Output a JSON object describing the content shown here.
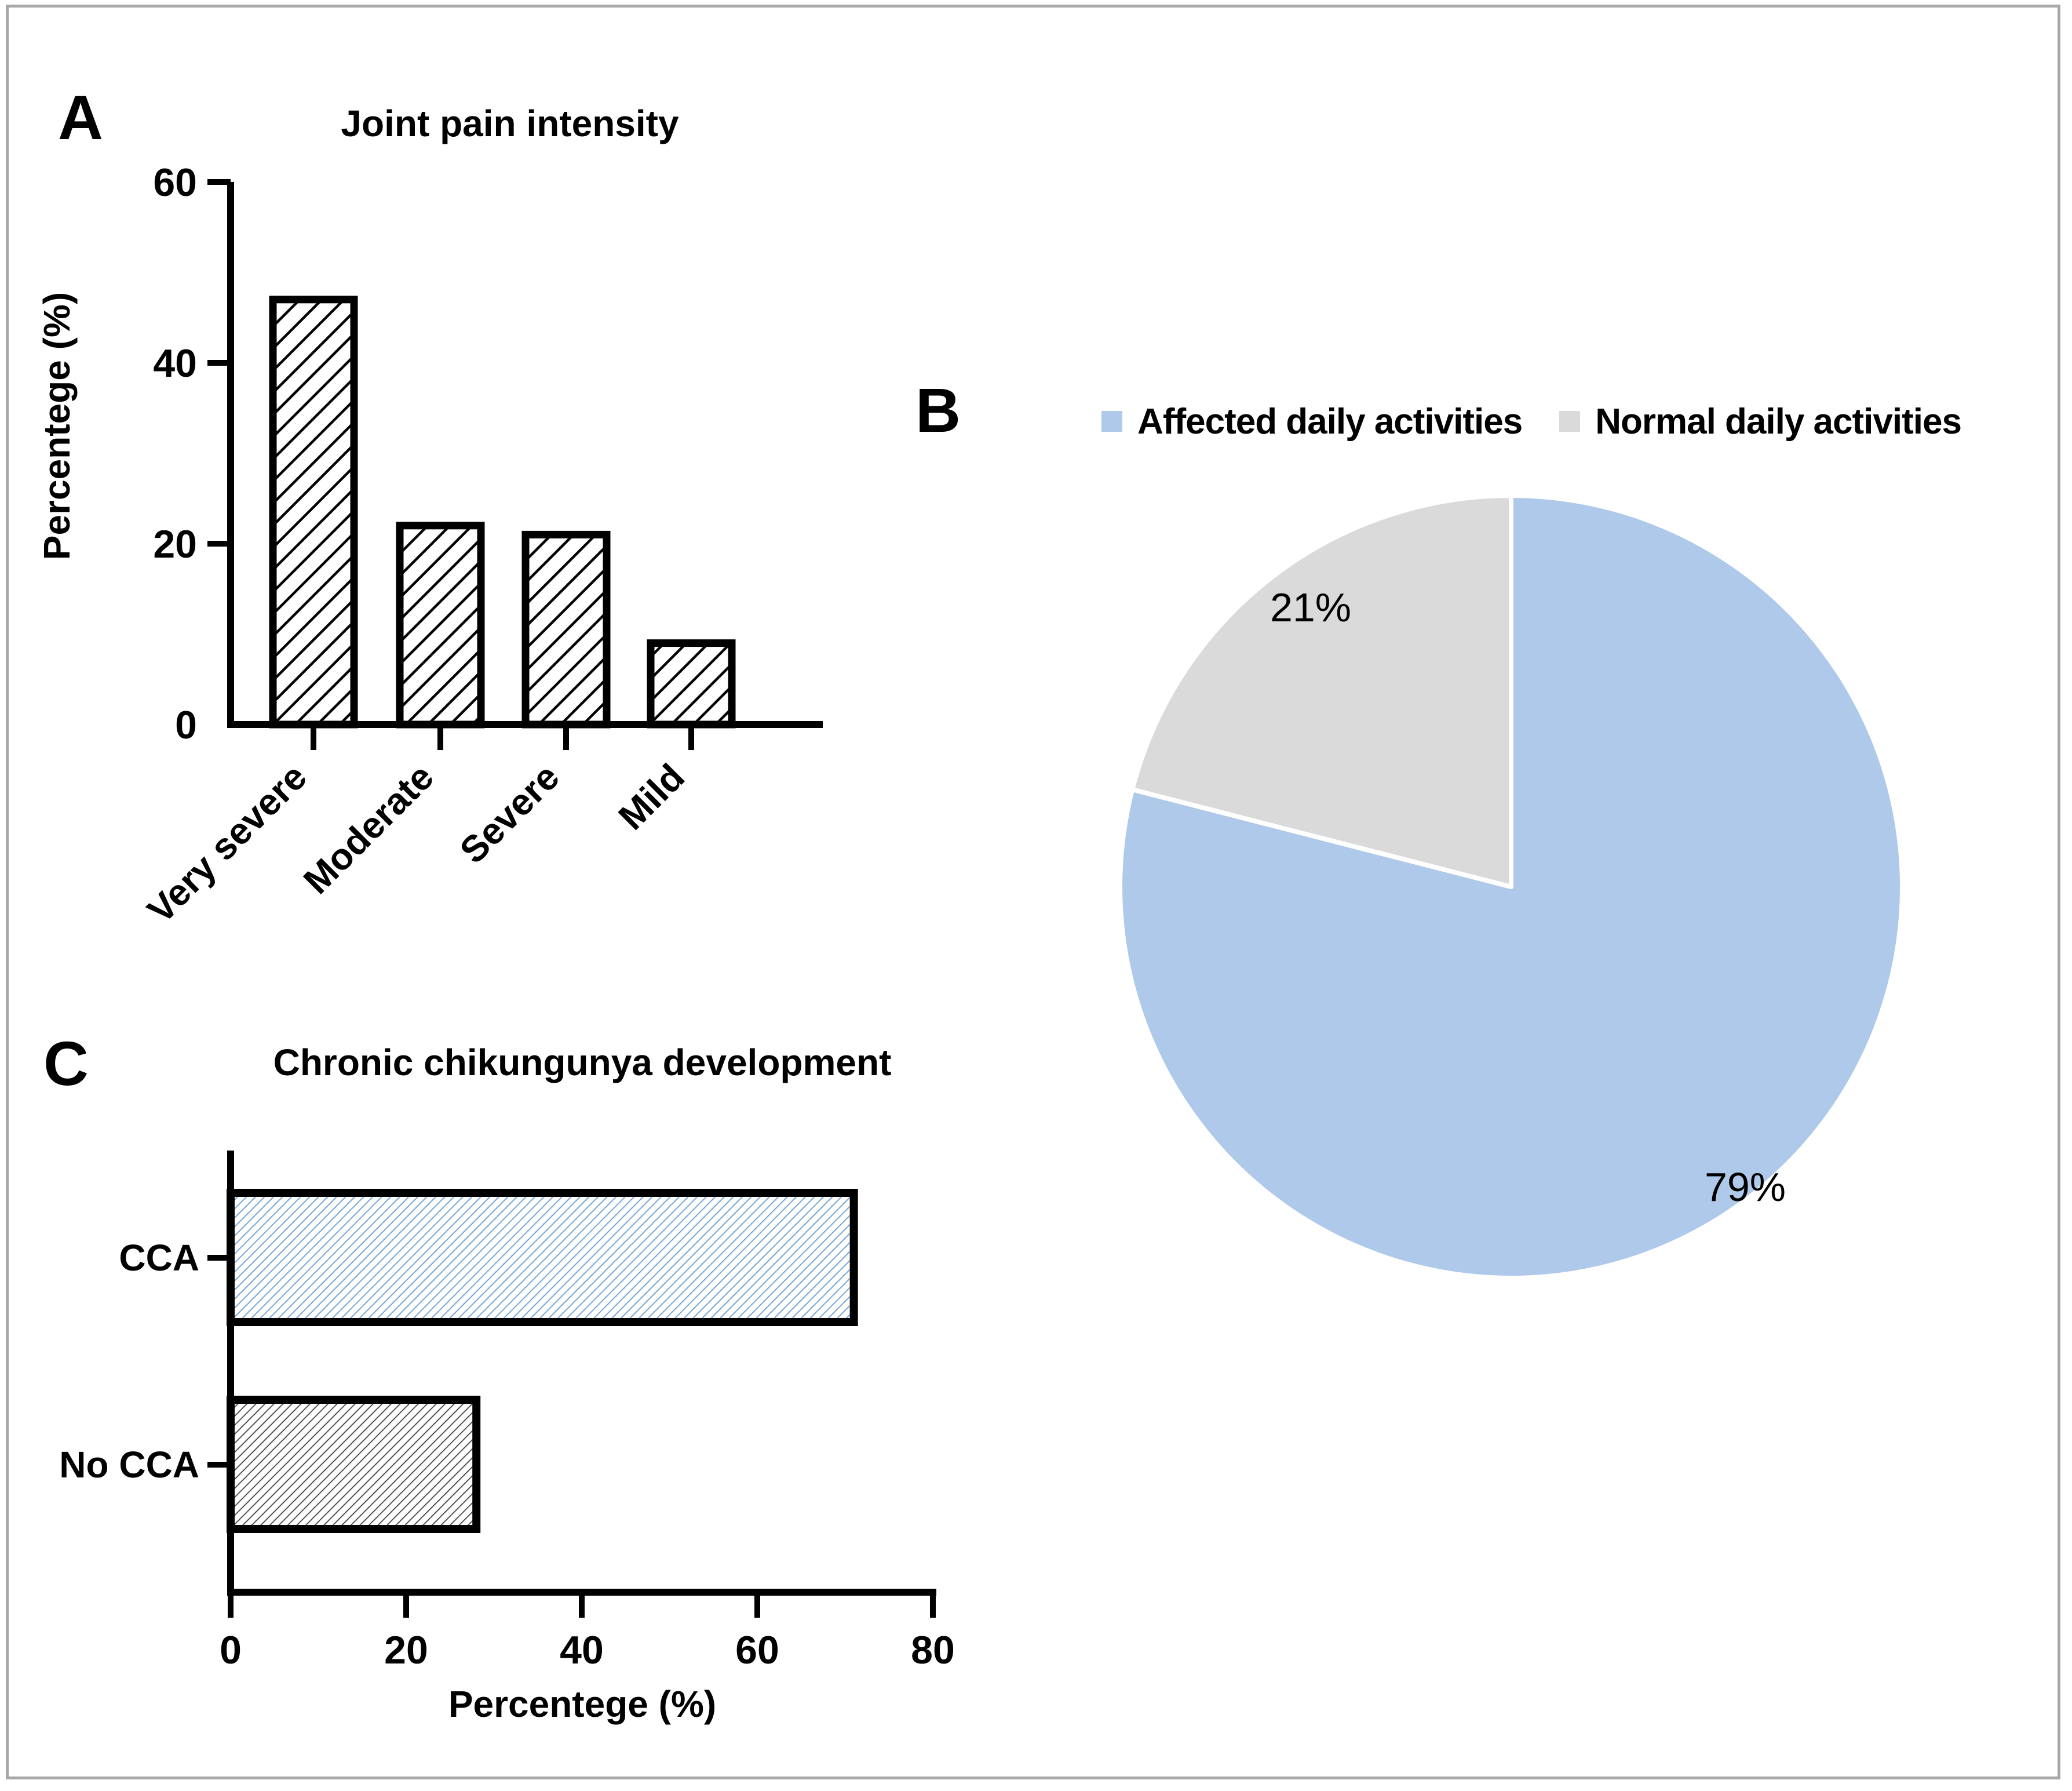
{
  "panels": {
    "a": {
      "label": "A",
      "title": "Joint pain intensity"
    },
    "b": {
      "label": "B"
    },
    "c": {
      "label": "C",
      "title": "Chronic chikungunya development"
    }
  },
  "chart_data": [
    {
      "type": "bar",
      "panel": "A",
      "title": "Joint pain intensity",
      "categories": [
        "Very severe",
        "Moderate",
        "Severe",
        "Mild"
      ],
      "values": [
        47,
        22,
        21,
        9
      ],
      "xlabel": "",
      "ylabel": "Percentege (%)",
      "yticks": [
        "0",
        "20",
        "40",
        "60"
      ],
      "ylim": [
        0,
        60
      ],
      "grid": false,
      "legend_position": "none",
      "bar_fill": "white with black diagonal hatch",
      "hatch_color": "#000000",
      "bar_border_color": "#000000"
    },
    {
      "type": "pie",
      "panel": "B",
      "title": "",
      "start_angle": "top",
      "direction": "clockwise",
      "legend_position": "top",
      "slices": [
        {
          "label": "Affected daily activities",
          "value": 79,
          "display": "79%",
          "color": "#aec9e9"
        },
        {
          "label": "Normal daily activities",
          "value": 21,
          "display": "21%",
          "color": "#dadada"
        }
      ],
      "separator_color": "#ffffff"
    },
    {
      "type": "bar",
      "panel": "C",
      "orientation": "horizontal",
      "title": "Chronic chikungunya development",
      "categories": [
        "CCA",
        "No CCA"
      ],
      "values": [
        71,
        28
      ],
      "xlabel": "Percentege (%)",
      "ylabel": "",
      "xticks": [
        "0",
        "20",
        "40",
        "60",
        "80"
      ],
      "xlim": [
        0,
        80
      ],
      "grid": false,
      "legend_position": "none",
      "bar_fill": "white with diagonal hatch",
      "hatch_colors": [
        "#73a3d2",
        "#4d4d4d"
      ],
      "bar_border_color": "#000000"
    }
  ],
  "frame_color": "#a8a8a8"
}
